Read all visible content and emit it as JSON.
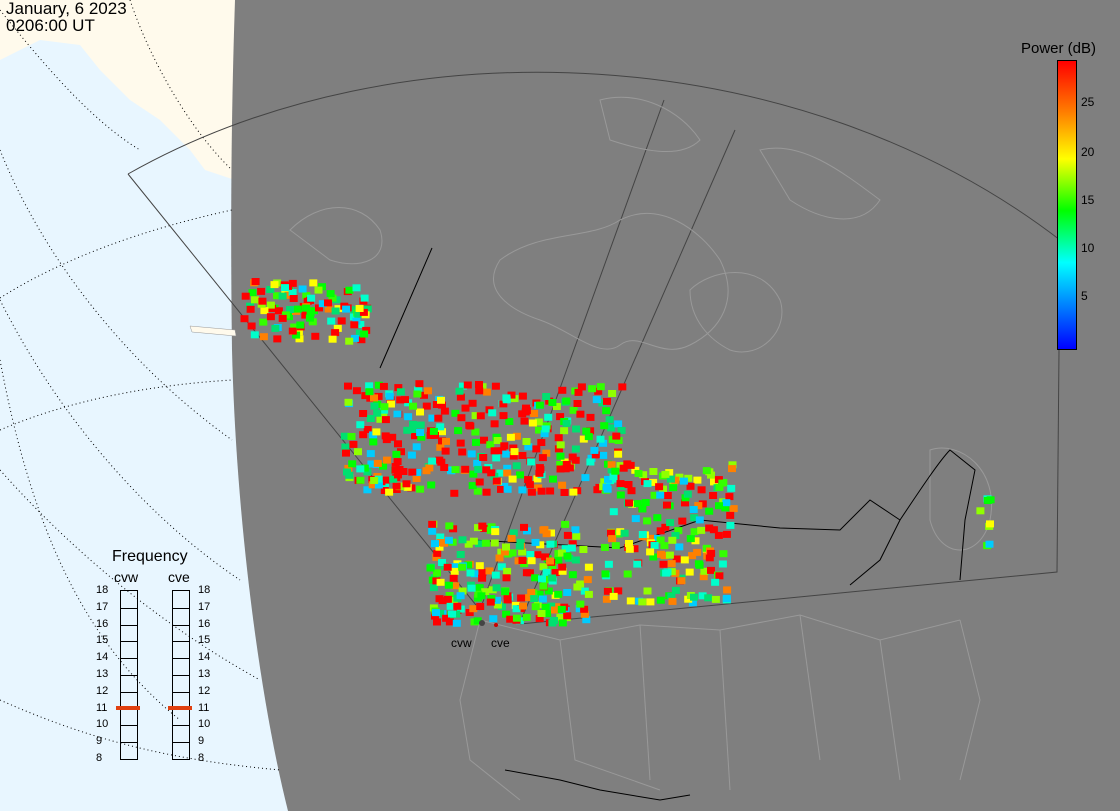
{
  "header": {
    "date": "January, 6 2023",
    "time": "0206:00 UT"
  },
  "colorbar": {
    "title": "Power (dB)",
    "ticks": [
      "25",
      "20",
      "15",
      "10",
      "5"
    ],
    "tick_values": [
      25,
      20,
      15,
      10,
      5
    ],
    "min": 0,
    "max": 29,
    "colors": [
      "#0000ff",
      "#00ffff",
      "#00ff00",
      "#ffff00",
      "#ff8000",
      "#ff0000"
    ]
  },
  "radar_sites": {
    "west_label": "cvw",
    "east_label": "cve"
  },
  "frequency": {
    "title": "Frequency",
    "columns": [
      {
        "label": "cvw",
        "value": 11
      },
      {
        "label": "cve",
        "value": 11
      }
    ],
    "scale": [
      "18",
      "17",
      "16",
      "15",
      "14",
      "13",
      "12",
      "11",
      "10",
      "9",
      "8"
    ],
    "marker_color": "#e04010"
  },
  "map_colors": {
    "ocean": "#e8f6ff",
    "land_outside": "#fffaec",
    "shaded_region": "#7f7f7f",
    "borders": "#999999"
  }
}
